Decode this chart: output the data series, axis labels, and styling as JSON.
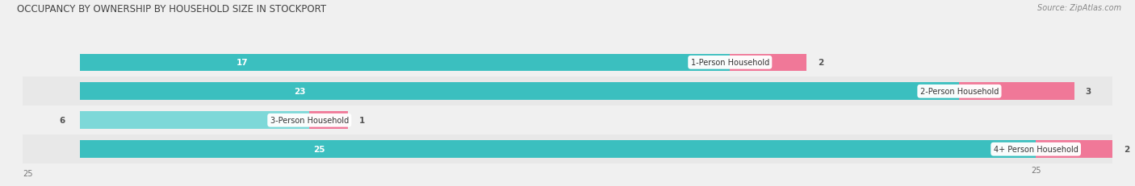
{
  "title": "OCCUPANCY BY OWNERSHIP BY HOUSEHOLD SIZE IN STOCKPORT",
  "source": "Source: ZipAtlas.com",
  "categories": [
    "1-Person Household",
    "2-Person Household",
    "3-Person Household",
    "4+ Person Household"
  ],
  "owner_values": [
    17,
    23,
    6,
    25
  ],
  "renter_values": [
    2,
    3,
    1,
    2
  ],
  "owner_color": "#3bbfbf",
  "renter_color": "#f07898",
  "owner_color_light": "#7dd8d8",
  "bg_color": "#f0f0f0",
  "row_bg_even": "#e8e8e8",
  "row_bg_odd": "#f0f0f0",
  "axis_max": 25,
  "title_fontsize": 8.5,
  "source_fontsize": 7,
  "bar_label_fontsize": 7.5,
  "category_label_fontsize": 7,
  "legend_fontsize": 7,
  "axis_tick_fontsize": 7,
  "bar_height": 0.6,
  "figsize": [
    14.06,
    2.32
  ],
  "dpi": 100
}
